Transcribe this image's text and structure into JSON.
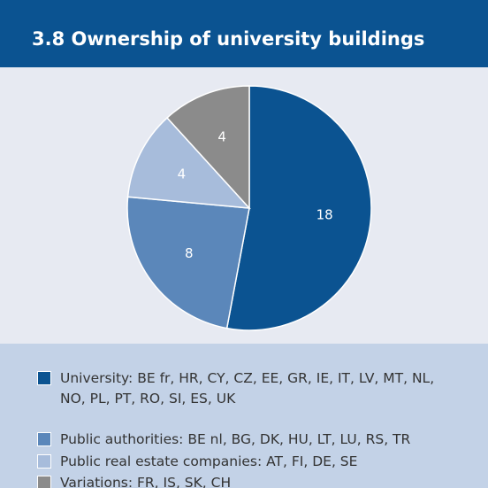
{
  "chart_data": {
    "type": "pie",
    "title": "3.8 Ownership of university buildings",
    "categories": [
      "University: BE fr, HR, CY, CZ, EE, GR, IE, IT, LV, MT, NL, NO, PL, PT, RO, SI, ES, UK",
      "Public authorities: BE nl, BG, DK, HU, LT, LU, RS, TR",
      "Public real estate companies: AT, FI, DE, SE",
      "Variations: FR, IS, SK, CH"
    ],
    "values": [
      18,
      8,
      4,
      4
    ],
    "colors": [
      "#0b5391",
      "#5b87ba",
      "#a7bcdb",
      "#8b8b8b"
    ],
    "legend": "bottom"
  }
}
